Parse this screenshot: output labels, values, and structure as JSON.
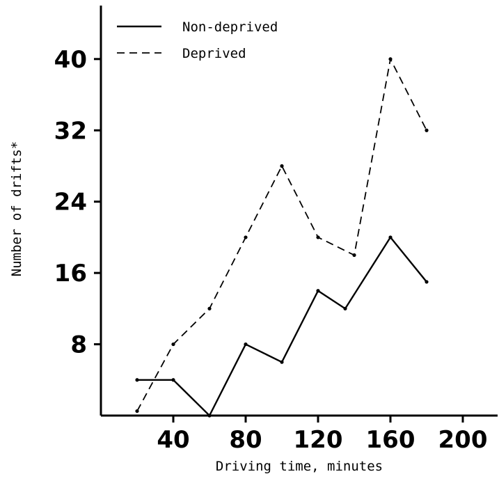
{
  "chart_data": {
    "type": "line",
    "xlabel": "Driving time, minutes",
    "ylabel": "Number of drifts*",
    "xlim": [
      0,
      220
    ],
    "ylim": [
      0,
      46
    ],
    "xticks": [
      40,
      80,
      120,
      160,
      200
    ],
    "yticks": [
      8,
      16,
      24,
      32,
      40
    ],
    "grid": false,
    "legend_position": "top-left",
    "series": [
      {
        "name": "Non-deprived",
        "style": "solid",
        "color": "#000000",
        "x": [
          20,
          40,
          60,
          80,
          100,
          120,
          135,
          160,
          180
        ],
        "y": [
          4,
          4,
          0,
          8,
          6,
          14,
          12,
          20,
          15
        ]
      },
      {
        "name": "Deprived",
        "style": "dashed",
        "color": "#000000",
        "x": [
          20,
          40,
          60,
          80,
          100,
          120,
          140,
          160,
          180
        ],
        "y": [
          0.5,
          8,
          12,
          20,
          28,
          20,
          18,
          40,
          32
        ]
      }
    ]
  }
}
